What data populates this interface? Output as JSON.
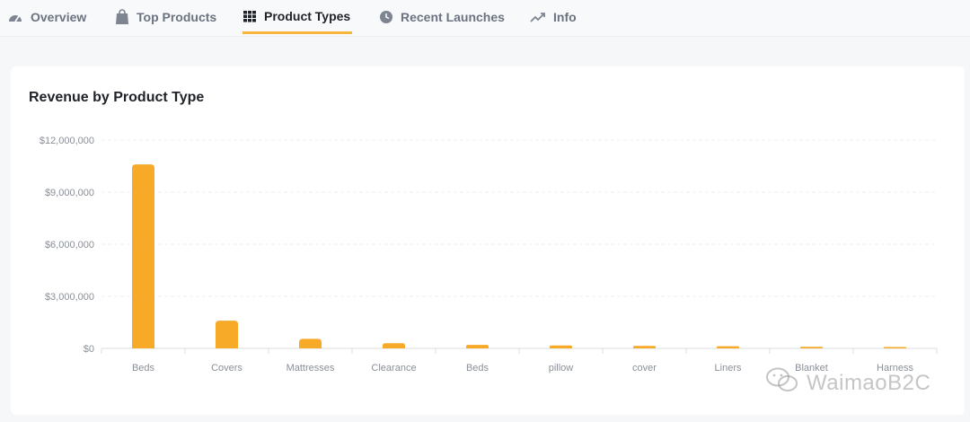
{
  "tabs": [
    {
      "label": "Overview",
      "icon": "gauge-icon",
      "active": false
    },
    {
      "label": "Top Products",
      "icon": "shopping-bag-icon",
      "active": false
    },
    {
      "label": "Product Types",
      "icon": "grid-icon",
      "active": true
    },
    {
      "label": "Recent Launches",
      "icon": "clock-icon",
      "active": false
    },
    {
      "label": "Info",
      "icon": "trending-up-icon",
      "active": false
    }
  ],
  "card": {
    "title": "Revenue by Product Type"
  },
  "colors": {
    "bar": "#f7a928",
    "active_tab_underline": "#f7b53b"
  },
  "chart_data": {
    "type": "bar",
    "title": "Revenue by Product Type",
    "xlabel": "",
    "ylabel": "",
    "categories": [
      "Beds",
      "Covers",
      "Mattresses",
      "Clearance",
      "Beds",
      "pillow",
      "cover",
      "Liners",
      "Blanket",
      "Harness"
    ],
    "values": [
      10600000,
      1600000,
      550000,
      300000,
      200000,
      170000,
      140000,
      120000,
      90000,
      80000
    ],
    "yticks": [
      "$0",
      "$3,000,000",
      "$6,000,000",
      "$9,000,000",
      "$12,000,000"
    ],
    "ylim": [
      0,
      12000000
    ],
    "grid": true
  },
  "watermark": {
    "text": "WaimaoB2C"
  }
}
